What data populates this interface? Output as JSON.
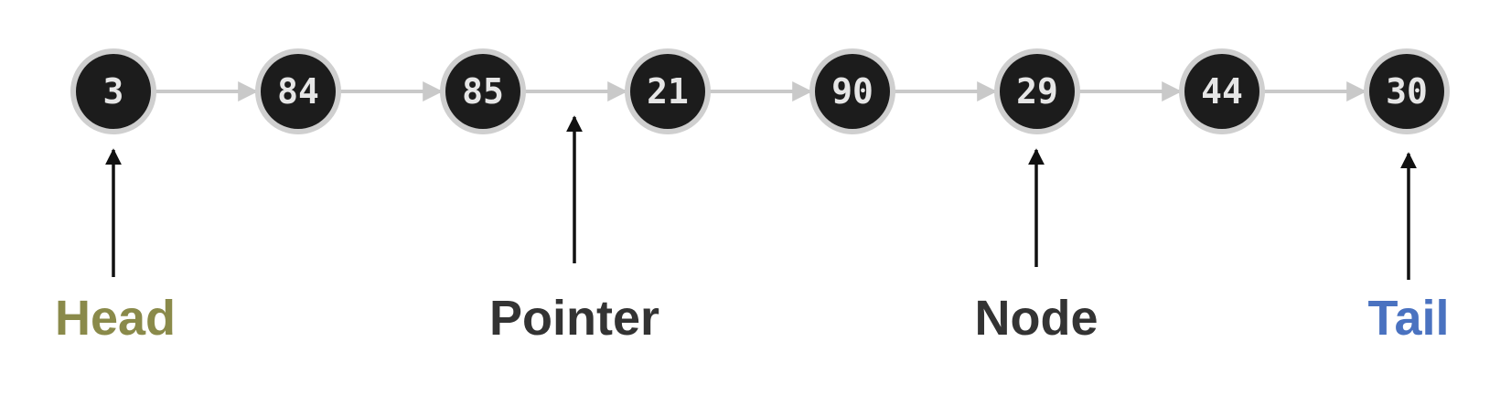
{
  "colors": {
    "node_fill": "#1c1c1c",
    "node_ring": "#cfcfcf",
    "node_text": "#e6e6e6",
    "link": "#c9c9c9",
    "annotation_arrow": "#111111",
    "head_label": "#8a8a4a",
    "pointer_label": "#333333",
    "node_label": "#333333",
    "tail_label": "#4a72c0"
  },
  "nodes": [
    {
      "value": "3"
    },
    {
      "value": "84"
    },
    {
      "value": "85"
    },
    {
      "value": "21"
    },
    {
      "value": "90"
    },
    {
      "value": "29"
    },
    {
      "value": "44"
    },
    {
      "value": "30"
    }
  ],
  "labels": {
    "head": "Head",
    "pointer": "Pointer",
    "node": "Node",
    "tail": "Tail"
  }
}
